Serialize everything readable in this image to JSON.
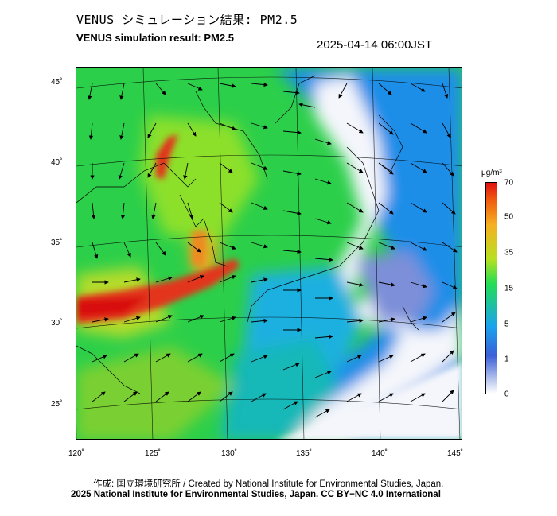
{
  "title_jp": "VENUS シミュレーション結果: PM2.5",
  "title_en": "VENUS simulation result: PM2.5",
  "timestamp": "2025-04-14 06:00JST",
  "map": {
    "lon_ticks": [
      "120˚",
      "125˚",
      "130˚",
      "135˚",
      "140˚",
      "145˚"
    ],
    "lat_ticks": [
      "45˚",
      "40˚",
      "35˚",
      "30˚",
      "25˚"
    ]
  },
  "colorbar": {
    "unit": "μg/m³",
    "ticks": [
      "70",
      "50",
      "35",
      "15",
      "5",
      "1",
      "0"
    ]
  },
  "credits": {
    "line1": "作成: 国立環境研究所 / Created by National Institute for Environmental Studies, Japan.",
    "line2": "2025 National Institute for Environmental Studies, Japan. CC BY−NC 4.0 International"
  }
}
